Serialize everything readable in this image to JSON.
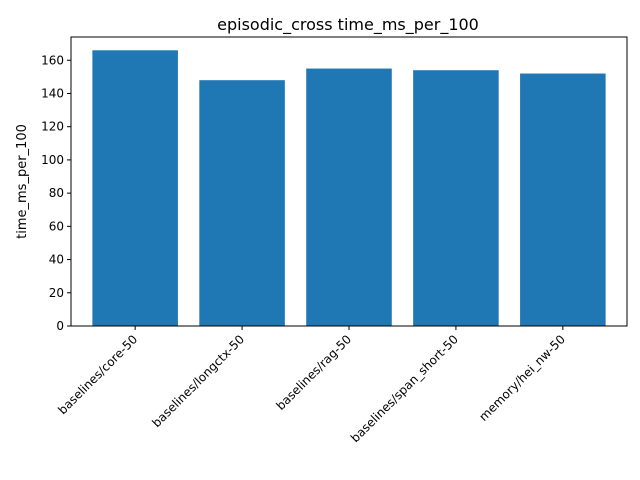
{
  "chart_data": {
    "type": "bar",
    "title": "episodic_cross time_ms_per_100",
    "xlabel": "",
    "ylabel": "time_ms_per_100",
    "categories": [
      "baselines/core-50",
      "baselines/longctx-50",
      "baselines/rag-50",
      "baselines/span_short-50",
      "memory/hei_nw-50"
    ],
    "values": [
      166,
      148,
      155,
      154,
      152
    ],
    "ylim": [
      0,
      174
    ],
    "yticks": [
      0,
      20,
      40,
      60,
      80,
      100,
      120,
      140,
      160
    ],
    "bar_color": "#1f77b4",
    "grid": false,
    "legend": false
  }
}
